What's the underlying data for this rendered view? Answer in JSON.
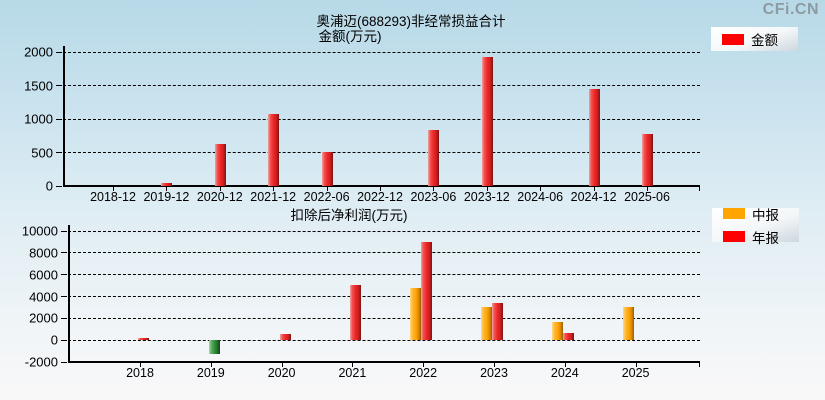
{
  "logo": "CFi.CN",
  "top_chart": {
    "title": "奥浦迈(688293)非经常损益合计",
    "subtitle": "金额(万元)",
    "legend": [
      {
        "label": "金额",
        "color": "#ff0000"
      }
    ]
  },
  "bottom_chart": {
    "subtitle": "扣除后净利润(万元)",
    "legend": [
      {
        "label": "中报",
        "color": "#ffa500"
      },
      {
        "label": "年报",
        "color": "#ff0000"
      }
    ]
  },
  "chart_data": [
    {
      "type": "bar",
      "title": "奥浦迈(688293)非经常损益合计",
      "subtitle": "金额(万元)",
      "categories": [
        "2018-12",
        "2019-12",
        "2020-12",
        "2021-12",
        "2022-06",
        "2022-12",
        "2023-06",
        "2023-12",
        "2024-06",
        "2024-12",
        "2025-06"
      ],
      "series": [
        {
          "name": "金额",
          "color": "#ff0000",
          "values": [
            null,
            50,
            620,
            1080,
            510,
            null,
            830,
            1930,
            null,
            1450,
            780
          ]
        }
      ],
      "ylim": [
        0,
        2000
      ],
      "yticks": [
        "0",
        "500",
        "1000",
        "1500",
        "2000"
      ],
      "grid": "horizontal-dashed",
      "legend_position": "top-right"
    },
    {
      "type": "bar",
      "subtitle": "扣除后净利润(万元)",
      "categories": [
        "2018",
        "2019",
        "2020",
        "2021",
        "2022",
        "2023",
        "2024",
        "2025"
      ],
      "series": [
        {
          "name": "中报",
          "color": "#ffa500",
          "values": [
            null,
            null,
            null,
            null,
            4800,
            3000,
            1700,
            3000
          ]
        },
        {
          "name": "年报",
          "color": "#ff0000",
          "values": [
            200,
            -1300,
            560,
            5050,
            9000,
            3450,
            700,
            null
          ]
        }
      ],
      "negative_color": "#2e8b3a",
      "ylim": [
        -2000,
        10000
      ],
      "yticks": [
        "-2000",
        "0",
        "2000",
        "4000",
        "6000",
        "8000",
        "10000"
      ],
      "grid": "horizontal-dashed",
      "legend_position": "right"
    }
  ]
}
